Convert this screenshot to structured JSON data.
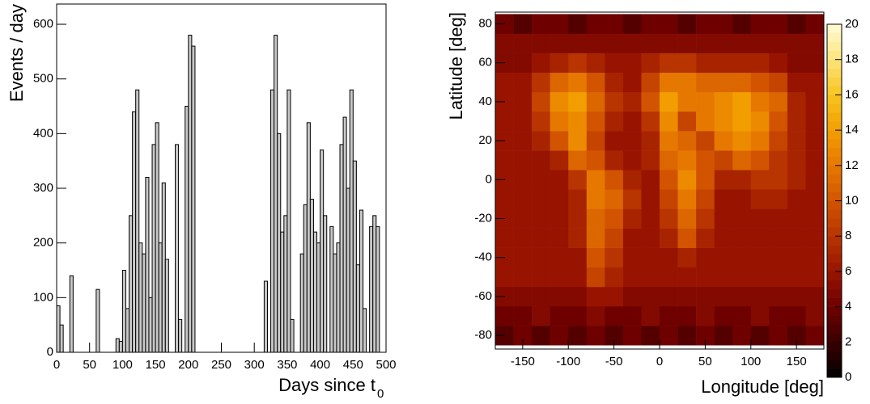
{
  "chart_data": [
    {
      "type": "histogram",
      "y_label": "Events / day",
      "x_label": "Days since t",
      "x_label_subscript": "0",
      "color": "#c8c8c8",
      "line_color": "#000000",
      "bins": [
        0,
        5,
        10,
        15,
        20,
        25,
        30,
        35,
        40,
        45,
        50,
        55,
        60,
        65,
        70,
        75,
        80,
        85,
        90,
        95,
        100,
        105,
        110,
        115,
        120,
        125,
        130,
        135,
        140,
        145,
        150,
        155,
        160,
        165,
        170,
        175,
        180,
        185,
        190,
        195,
        200,
        205,
        210,
        215,
        220,
        225,
        230,
        235,
        240,
        245,
        250,
        255,
        260,
        265,
        270,
        275,
        280,
        285,
        290,
        295,
        300,
        305,
        310,
        315,
        320,
        325,
        330,
        335,
        340,
        345,
        350,
        355,
        360,
        365,
        370,
        375,
        380,
        385,
        390,
        395,
        400,
        405,
        410,
        415,
        420,
        425,
        430,
        435,
        440,
        445,
        450,
        455,
        460,
        465,
        470,
        475,
        480,
        485,
        490,
        495,
        500
      ],
      "values": [
        85,
        50,
        0,
        0,
        140,
        0,
        0,
        0,
        0,
        0,
        0,
        0,
        115,
        0,
        0,
        0,
        0,
        0,
        25,
        20,
        150,
        80,
        250,
        440,
        480,
        200,
        180,
        320,
        100,
        380,
        420,
        200,
        310,
        170,
        0,
        0,
        380,
        60,
        0,
        450,
        580,
        560,
        0,
        0,
        0,
        0,
        0,
        0,
        0,
        0,
        0,
        0,
        0,
        0,
        0,
        0,
        0,
        0,
        0,
        0,
        0,
        0,
        0,
        130,
        0,
        480,
        580,
        400,
        220,
        250,
        480,
        60,
        0,
        0,
        180,
        270,
        420,
        280,
        220,
        200,
        370,
        250,
        0,
        230,
        180,
        200,
        380,
        430,
        300,
        480,
        350,
        160,
        260,
        80,
        0,
        230,
        250,
        230,
        0,
        0
      ],
      "xlim": [
        0,
        500
      ],
      "xticks": [
        0,
        50,
        100,
        150,
        200,
        250,
        300,
        350,
        400,
        450,
        500
      ],
      "ylim": [
        0,
        637
      ],
      "yticks": [
        0,
        100,
        200,
        300,
        400,
        500,
        600
      ]
    },
    {
      "type": "heatmap",
      "x_label": "Longitude [deg]",
      "y_label": "Latitude [deg]",
      "x_bins": [
        -180,
        -160,
        -140,
        -120,
        -100,
        -80,
        -60,
        -40,
        -20,
        0,
        20,
        40,
        60,
        80,
        100,
        120,
        140,
        160,
        180
      ],
      "y_bins": [
        -85,
        -75,
        -65,
        -55,
        -45,
        -35,
        -25,
        -15,
        -5,
        5,
        15,
        25,
        35,
        45,
        55,
        65,
        75,
        85
      ],
      "z": [
        [
          3,
          4,
          3,
          4,
          3,
          4,
          3,
          4,
          3,
          4,
          3,
          4,
          3,
          4,
          3,
          4,
          3,
          4
        ],
        [
          4,
          4,
          5,
          4,
          4,
          5,
          4,
          4,
          5,
          4,
          4,
          5,
          4,
          4,
          5,
          4,
          4,
          5
        ],
        [
          5,
          5,
          5,
          5,
          5,
          6,
          6,
          5,
          5,
          5,
          5,
          5,
          5,
          5,
          5,
          5,
          5,
          5
        ],
        [
          6,
          6,
          6,
          6,
          6,
          9,
          7,
          6,
          6,
          6,
          6,
          6,
          6,
          6,
          6,
          6,
          6,
          6
        ],
        [
          6,
          6,
          6,
          6,
          6,
          10,
          8,
          6,
          6,
          6,
          7,
          6,
          6,
          6,
          6,
          6,
          6,
          6
        ],
        [
          6,
          6,
          6,
          6,
          7,
          11,
          9,
          6,
          6,
          7,
          10,
          7,
          6,
          6,
          6,
          6,
          6,
          6
        ],
        [
          6,
          6,
          6,
          6,
          7,
          11,
          10,
          7,
          6,
          8,
          11,
          8,
          6,
          6,
          6,
          6,
          6,
          6
        ],
        [
          6,
          6,
          6,
          6,
          7,
          12,
          11,
          8,
          6,
          9,
          12,
          9,
          6,
          6,
          7,
          7,
          6,
          6
        ],
        [
          6,
          6,
          6,
          6,
          8,
          12,
          10,
          7,
          6,
          10,
          13,
          10,
          7,
          7,
          8,
          8,
          7,
          6
        ],
        [
          6,
          6,
          6,
          7,
          11,
          10,
          7,
          6,
          7,
          11,
          12,
          10,
          9,
          11,
          10,
          8,
          7,
          6
        ],
        [
          6,
          6,
          7,
          10,
          13,
          9,
          6,
          6,
          7,
          12,
          11,
          9,
          12,
          13,
          12,
          9,
          7,
          6
        ],
        [
          6,
          6,
          8,
          12,
          13,
          10,
          7,
          6,
          8,
          13,
          9,
          12,
          13,
          14,
          13,
          10,
          7,
          6
        ],
        [
          6,
          6,
          9,
          13,
          14,
          11,
          8,
          7,
          10,
          14,
          12,
          12,
          13,
          14,
          12,
          11,
          7,
          6
        ],
        [
          6,
          6,
          8,
          11,
          12,
          10,
          7,
          6,
          9,
          12,
          12,
          11,
          11,
          11,
          10,
          9,
          6,
          6
        ],
        [
          5,
          5,
          6,
          7,
          8,
          7,
          6,
          6,
          7,
          8,
          8,
          7,
          7,
          7,
          7,
          6,
          5,
          5
        ],
        [
          5,
          5,
          5,
          5,
          5,
          5,
          5,
          5,
          5,
          5,
          5,
          5,
          5,
          5,
          5,
          5,
          5,
          5
        ],
        [
          4,
          3,
          4,
          4,
          3,
          4,
          4,
          3,
          4,
          4,
          3,
          4,
          4,
          3,
          4,
          4,
          3,
          4
        ]
      ],
      "xlim": [
        -180,
        180
      ],
      "xticks": [
        -150,
        -100,
        -50,
        0,
        50,
        100,
        150
      ],
      "ylim": [
        -87,
        86
      ],
      "yticks": [
        -80,
        -60,
        -40,
        -20,
        0,
        20,
        40,
        60,
        80
      ],
      "zlim": [
        0,
        20
      ],
      "zticks": [
        0,
        2,
        4,
        6,
        8,
        10,
        12,
        14,
        16,
        18,
        20
      ],
      "palette": [
        "#000000",
        "#3a0000",
        "#6e0000",
        "#981400",
        "#b83400",
        "#d25400",
        "#e67800",
        "#f29e00",
        "#f8c420",
        "#fde47a",
        "#fffbd8"
      ]
    }
  ]
}
